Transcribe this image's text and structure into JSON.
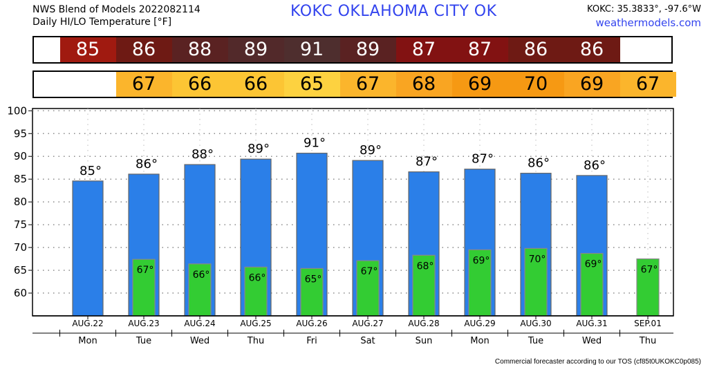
{
  "header": {
    "title_line1": "NWS Blend of Models 2022082114",
    "title_line2": "Daily HI/LO Temperature [°F]",
    "station": "KOKC   OKLAHOMA CITY   OK",
    "coords": "KOKC: 35.3833°, -97.6°W",
    "site": "weathermodels.com"
  },
  "footer": {
    "text": "Commercial forecaster according to our TOS (cf85t0UKOKC0p085)"
  },
  "colors": {
    "hi_bar": "#2b7fe8",
    "lo_bar": "#33cc33",
    "hi_cells": [
      "#a01a10",
      "#6e1a14",
      "#5a2222",
      "#52292a",
      "#4e2e2e",
      "#5a2222",
      "#821212",
      "#821212",
      "#6e1a14",
      "#6e1a14"
    ],
    "lo_cells": [
      "#fbb52c",
      "#fcc534",
      "#fcc534",
      "#fdd240",
      "#fbb52c",
      "#f9a522",
      "#f69913",
      "#f69913",
      "#f9a522",
      "#fbb52c"
    ]
  },
  "chart_data": {
    "type": "bar",
    "categories": [
      "AUG.22",
      "AUG.23",
      "AUG.24",
      "AUG.25",
      "AUG.26",
      "AUG.27",
      "AUG.28",
      "AUG.29",
      "AUG.30",
      "AUG.31",
      "SEP.01"
    ],
    "weekdays": [
      "Mon",
      "Tue",
      "Wed",
      "Thu",
      "Fri",
      "Sat",
      "Sun",
      "Mon",
      "Tue",
      "Wed",
      "Thu"
    ],
    "ylim": [
      55,
      100.5
    ],
    "yticks": [
      60,
      65,
      70,
      75,
      80,
      85,
      90,
      95,
      100
    ],
    "series": [
      {
        "values": [
          84.6,
          86.1,
          88.2,
          89.4,
          90.7,
          89.1,
          86.6,
          87.2,
          86.3,
          85.8,
          null
        ],
        "labels": [
          "85°",
          "86°",
          "88°",
          "89°",
          "91°",
          "89°",
          "87°",
          "87°",
          "86°",
          "86°",
          ""
        ]
      },
      {
        "values": [
          null,
          67.4,
          66.4,
          65.7,
          65.4,
          67.1,
          68.3,
          69.5,
          69.8,
          68.7,
          67.5
        ],
        "labels": [
          "",
          "67°",
          "66°",
          "66°",
          "65°",
          "67°",
          "68°",
          "69°",
          "70°",
          "69°",
          "67°"
        ]
      }
    ],
    "hi_strip": [
      "85",
      "86",
      "88",
      "89",
      "91",
      "89",
      "87",
      "87",
      "86",
      "86"
    ],
    "lo_strip": [
      "67",
      "66",
      "66",
      "65",
      "67",
      "68",
      "69",
      "70",
      "69",
      "67"
    ]
  }
}
